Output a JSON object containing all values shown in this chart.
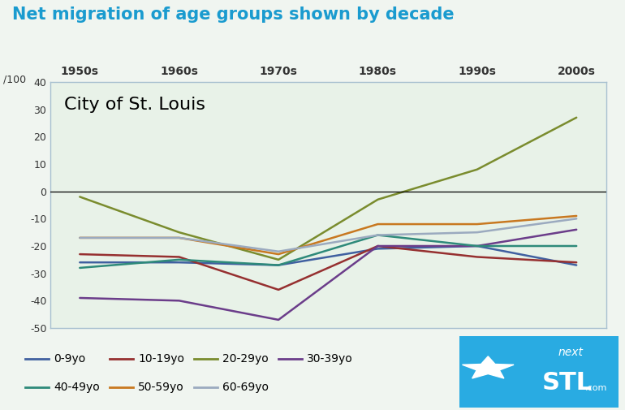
{
  "title": "Net migration of age groups shown by decade",
  "subtitle": "City of St. Louis",
  "ylabel": "/100",
  "decades": [
    "1950s",
    "1960s",
    "1970s",
    "1980s",
    "1990s",
    "2000s"
  ],
  "x_values": [
    0,
    1,
    2,
    3,
    4,
    5
  ],
  "ylim": [
    -50,
    40
  ],
  "yticks": [
    -50,
    -40,
    -30,
    -20,
    -10,
    0,
    10,
    20,
    30,
    40
  ],
  "series": [
    {
      "name": "0-9yo",
      "color": "#4060a0",
      "values": [
        -26,
        -26,
        -27,
        -21,
        -20,
        -27
      ]
    },
    {
      "name": "10-19yo",
      "color": "#963030",
      "values": [
        -23,
        -24,
        -36,
        -20,
        -24,
        -26
      ]
    },
    {
      "name": "20-29yo",
      "color": "#7a8c2e",
      "values": [
        -2,
        -15,
        -25,
        -3,
        8,
        27
      ]
    },
    {
      "name": "30-39yo",
      "color": "#6b3d8a",
      "values": [
        -39,
        -40,
        -47,
        -20,
        -20,
        -14
      ]
    },
    {
      "name": "40-49yo",
      "color": "#2e8a7a",
      "values": [
        -28,
        -25,
        -27,
        -16,
        -20,
        -20
      ]
    },
    {
      "name": "50-59yo",
      "color": "#c87820",
      "values": [
        -17,
        -17,
        -23,
        -12,
        -12,
        -9
      ]
    },
    {
      "name": "60-69yo",
      "color": "#9baabf",
      "values": [
        -17,
        -17,
        -22,
        -16,
        -15,
        -10
      ]
    }
  ],
  "title_color": "#1a9bcf",
  "title_fontsize": 15,
  "bg_color": "#f0f5f0",
  "plot_bg_color": "#e8f2e8",
  "legend_fontsize": 10,
  "logo_color": "#29abe2",
  "decade_label_color": "#333333",
  "subtitle_fontsize": 16
}
